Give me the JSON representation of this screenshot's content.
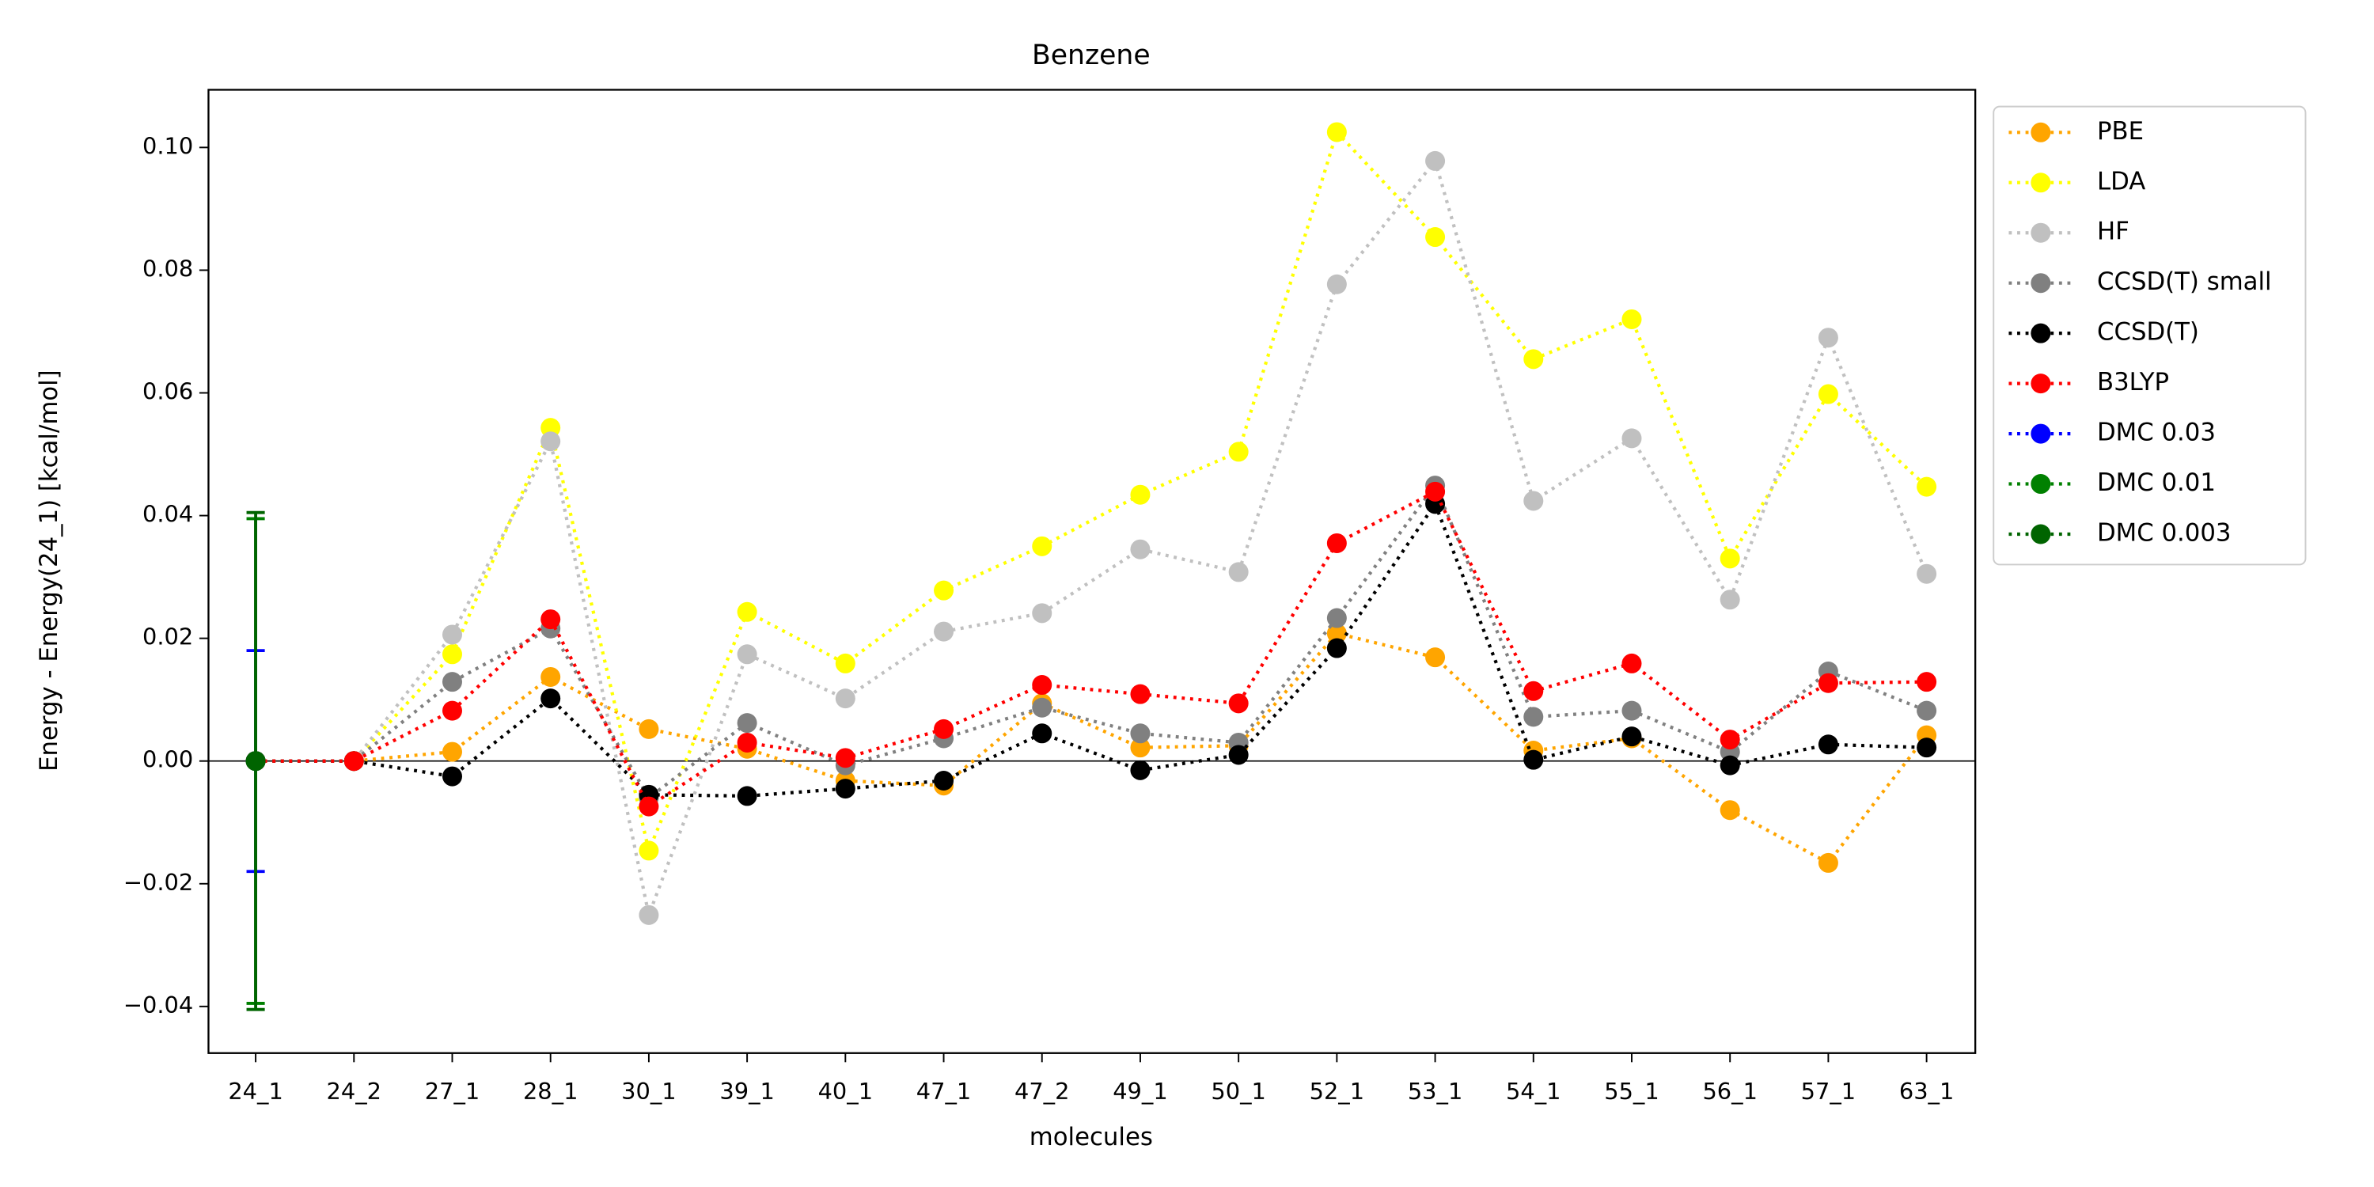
{
  "chart_data": {
    "type": "line",
    "title": "Benzene",
    "xlabel": "molecules",
    "ylabel": "Energy - Energy(24_1) [kcal/mol]",
    "categories": [
      "24_1",
      "24_2",
      "27_1",
      "28_1",
      "30_1",
      "39_1",
      "40_1",
      "47_1",
      "47_2",
      "49_1",
      "50_1",
      "52_1",
      "53_1",
      "54_1",
      "55_1",
      "56_1",
      "57_1",
      "63_1"
    ],
    "ylim": [
      -0.0476,
      0.1094
    ],
    "yticks": [
      {
        "value": -0.04,
        "label": "−0.04"
      },
      {
        "value": -0.02,
        "label": "−0.02"
      },
      {
        "value": 0,
        "label": "0.00"
      },
      {
        "value": 0.02,
        "label": "0.02"
      },
      {
        "value": 0.04,
        "label": "0.04"
      },
      {
        "value": 0.06,
        "label": "0.06"
      },
      {
        "value": 0.08,
        "label": "0.08"
      },
      {
        "value": 0.1,
        "label": "0.10"
      }
    ],
    "hline": 0,
    "legend": "outside right",
    "series": [
      {
        "name": "PBE",
        "color": "#ffa500",
        "values": [
          0,
          0,
          0.0015,
          0.0137,
          0.0052,
          0.002,
          -0.0032,
          -0.004,
          0.0094,
          0.0022,
          0.0025,
          0.0208,
          0.0169,
          0.0017,
          0.0037,
          -0.008,
          -0.0166,
          0.0042
        ]
      },
      {
        "name": "LDA",
        "color": "#ffff00",
        "values": [
          0,
          0,
          0.0174,
          0.0543,
          -0.0146,
          0.0243,
          0.0159,
          0.0278,
          0.035,
          0.0434,
          0.0504,
          0.1025,
          0.0854,
          0.0655,
          0.072,
          0.033,
          0.0598,
          0.0447
        ]
      },
      {
        "name": "HF",
        "color": "#c0c0c0",
        "values": [
          0,
          0,
          0.0206,
          0.0521,
          -0.0251,
          0.0174,
          0.0102,
          0.0211,
          0.0241,
          0.0345,
          0.0308,
          0.0777,
          0.0978,
          0.0424,
          0.0526,
          0.0263,
          0.069,
          0.0305
        ]
      },
      {
        "name": "CCSD(T) small",
        "color": "#808080",
        "values": [
          0,
          0,
          0.0129,
          0.0216,
          -0.006,
          0.0062,
          -0.0007,
          0.0037,
          0.0087,
          0.0045,
          0.003,
          0.0233,
          0.0449,
          0.0072,
          0.0082,
          0.0015,
          0.0146,
          0.0082
        ]
      },
      {
        "name": "CCSD(T)",
        "color": "#000000",
        "values": [
          0,
          0,
          -0.0025,
          0.0102,
          -0.0055,
          -0.0057,
          -0.0045,
          -0.0032,
          0.0045,
          -0.0015,
          0.001,
          0.0184,
          0.0419,
          0.0002,
          0.004,
          -0.0007,
          0.0027,
          0.0022
        ]
      },
      {
        "name": "B3LYP",
        "color": "#ff0000",
        "values": [
          0,
          0,
          0.0082,
          0.0231,
          -0.0074,
          0.003,
          0.0005,
          0.0052,
          0.0124,
          0.0109,
          0.0094,
          0.0355,
          0.0439,
          0.0114,
          0.0159,
          0.0035,
          0.0127,
          0.0129
        ]
      },
      {
        "name": "DMC 0.03",
        "color": "#0000ff",
        "values": [
          0,
          null,
          null,
          null,
          null,
          null,
          null,
          null,
          null,
          null,
          null,
          null,
          null,
          null,
          null,
          null,
          null,
          null
        ],
        "errors": [
          0.018,
          null,
          null,
          null,
          null,
          null,
          null,
          null,
          null,
          null,
          null,
          null,
          null,
          null,
          null,
          null,
          null,
          null
        ]
      },
      {
        "name": "DMC 0.01",
        "color": "#008000",
        "values": [
          0,
          null,
          null,
          null,
          null,
          null,
          null,
          null,
          null,
          null,
          null,
          null,
          null,
          null,
          null,
          null,
          null,
          null
        ],
        "errors": [
          0.0395,
          null,
          null,
          null,
          null,
          null,
          null,
          null,
          null,
          null,
          null,
          null,
          null,
          null,
          null,
          null,
          null,
          null
        ]
      },
      {
        "name": "DMC 0.003",
        "color": "#006400",
        "values": [
          0,
          null,
          null,
          null,
          null,
          null,
          null,
          null,
          null,
          null,
          null,
          null,
          null,
          null,
          null,
          null,
          null,
          null
        ],
        "errors": [
          0.0405,
          null,
          null,
          null,
          null,
          null,
          null,
          null,
          null,
          null,
          null,
          null,
          null,
          null,
          null,
          null,
          null,
          null
        ]
      }
    ]
  }
}
